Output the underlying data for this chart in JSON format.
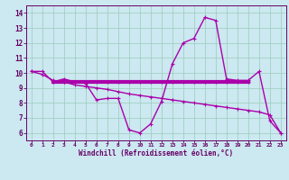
{
  "xlabel": "Windchill (Refroidissement éolien,°C)",
  "background_color": "#cce8f0",
  "line_color": "#aa00aa",
  "grid_color": "#99ccbb",
  "spine_color": "#660066",
  "xlim": [
    -0.5,
    23.5
  ],
  "ylim": [
    5.5,
    14.5
  ],
  "yticks": [
    6,
    7,
    8,
    9,
    10,
    11,
    12,
    13,
    14
  ],
  "xticks": [
    0,
    1,
    2,
    3,
    4,
    5,
    6,
    7,
    8,
    9,
    10,
    11,
    12,
    13,
    14,
    15,
    16,
    17,
    18,
    19,
    20,
    21,
    22,
    23
  ],
  "series1_x": [
    0,
    1,
    2,
    3,
    4,
    5,
    6,
    7,
    8,
    9,
    10,
    11,
    12,
    13,
    14,
    15,
    16,
    17,
    18,
    19,
    20,
    21,
    22,
    23
  ],
  "series1_y": [
    10.1,
    10.1,
    9.4,
    9.6,
    9.4,
    9.3,
    8.2,
    8.3,
    8.3,
    6.2,
    6.0,
    6.6,
    8.1,
    10.6,
    12.0,
    12.3,
    13.7,
    13.5,
    9.6,
    9.5,
    9.5,
    10.1,
    6.8,
    6.0
  ],
  "series2_x": [
    0,
    1,
    2,
    3,
    4,
    5,
    6,
    7,
    8,
    9,
    10,
    11,
    12,
    13,
    14,
    15,
    16,
    17,
    18,
    19,
    20,
    21,
    22,
    23
  ],
  "series2_y": [
    10.1,
    9.9,
    9.5,
    9.4,
    9.2,
    9.1,
    9.0,
    8.9,
    8.75,
    8.6,
    8.5,
    8.4,
    8.3,
    8.2,
    8.1,
    8.0,
    7.9,
    7.8,
    7.7,
    7.6,
    7.5,
    7.4,
    7.2,
    6.0
  ],
  "series3_x": [
    2,
    3,
    4,
    5,
    6,
    7,
    8,
    9,
    10,
    11,
    12,
    13,
    14,
    15,
    16,
    17,
    18,
    19,
    20
  ],
  "series3_y": [
    9.4,
    9.4,
    9.4,
    9.4,
    9.4,
    9.4,
    9.4,
    9.4,
    9.4,
    9.4,
    9.4,
    9.4,
    9.4,
    9.4,
    9.4,
    9.4,
    9.4,
    9.4,
    9.4
  ]
}
